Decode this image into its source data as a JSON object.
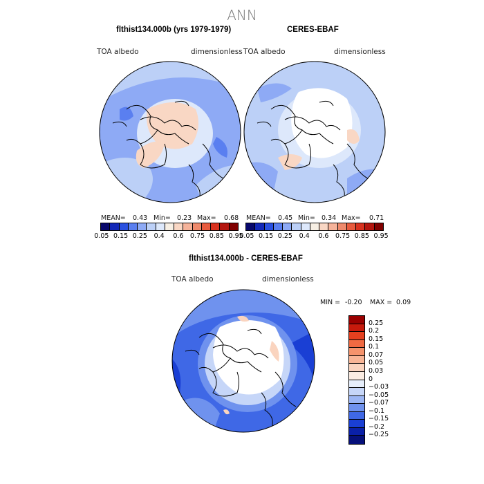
{
  "figure": {
    "title": "ANN"
  },
  "left_panel": {
    "title": "flthist134.000b (yrs 1979-1979)",
    "variable": "TOA albedo",
    "units": "dimensionless",
    "mean_label": "MEAN=",
    "mean": "0.43",
    "min_label": "Min=",
    "min": "0.23",
    "max_label": "Max=",
    "max": "0.68"
  },
  "right_panel": {
    "title": "CERES-EBAF",
    "variable": "TOA albedo",
    "units": "dimensionless",
    "mean_label": "MEAN=",
    "mean": "0.45",
    "min_label": "Min=",
    "min": "0.34",
    "max_label": "Max=",
    "max": "0.71"
  },
  "colorbar_top": {
    "labels": [
      "0.05",
      "0.15",
      "0.25",
      "0.4",
      "0.6",
      "0.75",
      "0.85",
      "0.95"
    ],
    "colors": [
      "#08086b",
      "#1328b8",
      "#2a50e0",
      "#5a7ff0",
      "#8eaaf5",
      "#bcd0f7",
      "#dde8fb",
      "#f7efe4",
      "#f9d7c4",
      "#f5b39a",
      "#ef8a6c",
      "#e85b3e",
      "#d8321f",
      "#b4150e",
      "#800000"
    ]
  },
  "bottom_panel": {
    "title": "flthist134.000b - CERES-EBAF",
    "variable": "TOA albedo",
    "units": "dimensionless",
    "min_label": "MIN =",
    "min": "-0.20",
    "max_label": "MAX =",
    "max": "0.09"
  },
  "colorbar_bottom": {
    "labels": [
      "0.25",
      "0.2",
      "0.15",
      "0.1",
      "0.07",
      "0.05",
      "0.03",
      "0",
      "−0.03",
      "−0.05",
      "−0.07",
      "−0.1",
      "−0.15",
      "−0.2",
      "−0.25"
    ],
    "colors": [
      "#9a0000",
      "#c71a0c",
      "#e5401f",
      "#f06a42",
      "#f5936c",
      "#f8b596",
      "#fad4bf",
      "#fbece2",
      "#e6eefb",
      "#c6d6f8",
      "#9cb6f4",
      "#6f92ee",
      "#3f68e6",
      "#1a3fd4",
      "#0a20a8",
      "#06107a"
    ]
  }
}
